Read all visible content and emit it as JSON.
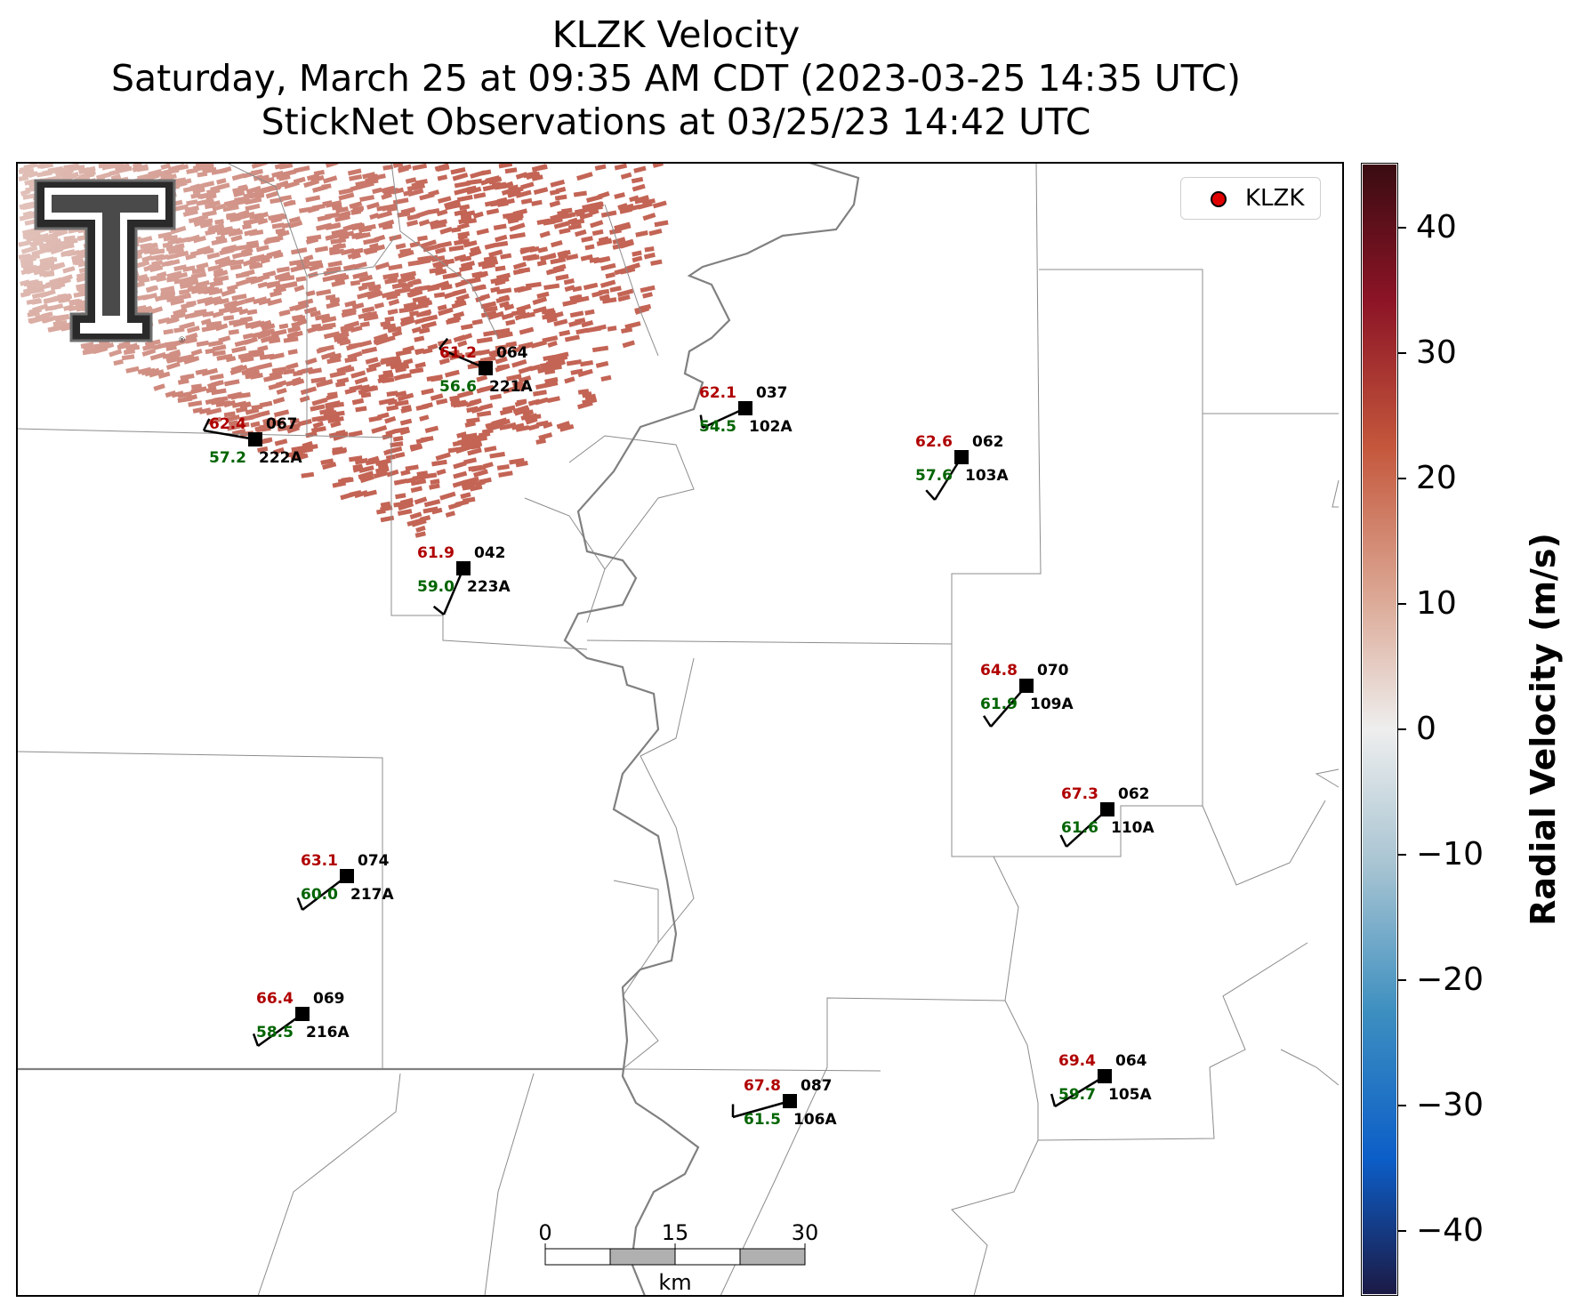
{
  "title": {
    "line1": "KLZK Velocity",
    "line2": "Saturday, March 25 at 09:35 AM CDT (2023-03-25 14:35 UTC)",
    "line3": "StickNet Observations at 03/25/23 14:42 UTC"
  },
  "legend": {
    "label": "KLZK",
    "marker_color": "#e00000"
  },
  "colorbar": {
    "label": "Radial Velocity (m/s)",
    "ticks": [
      "40",
      "30",
      "20",
      "10",
      "0",
      "−10",
      "−20",
      "−30",
      "−40"
    ],
    "range": [
      -45,
      45
    ],
    "colors": [
      "#1c1a45",
      "#0c5ec8",
      "#3d8fc0",
      "#a8c4d2",
      "#eeeeee",
      "#dba692",
      "#c4573c",
      "#8c1426",
      "#3a0c12"
    ]
  },
  "scalebar": {
    "labels": [
      "0",
      "15",
      "30"
    ],
    "unit": "km"
  },
  "stations": [
    {
      "id": "221A",
      "temp": "61.2",
      "dew": "56.6",
      "dir": "064"
    },
    {
      "id": "222A",
      "temp": "62.4",
      "dew": "57.2",
      "dir": "067"
    },
    {
      "id": "102A",
      "temp": "62.1",
      "dew": "54.5",
      "dir": "037"
    },
    {
      "id": "103A",
      "temp": "62.6",
      "dew": "57.6",
      "dir": "062"
    },
    {
      "id": "223A",
      "temp": "61.9",
      "dew": "59.0",
      "dir": "042"
    },
    {
      "id": "109A",
      "temp": "64.8",
      "dew": "61.9",
      "dir": "070"
    },
    {
      "id": "110A",
      "temp": "67.3",
      "dew": "61.6",
      "dir": "062"
    },
    {
      "id": "217A",
      "temp": "63.1",
      "dew": "60.0",
      "dir": "074"
    },
    {
      "id": "216A",
      "temp": "66.4",
      "dew": "58.5",
      "dir": "069"
    },
    {
      "id": "105A",
      "temp": "69.4",
      "dew": "59.7",
      "dir": "064"
    },
    {
      "id": "106A",
      "temp": "67.8",
      "dew": "61.5",
      "dir": "087"
    }
  ],
  "logo": {
    "alt": "Texas Tech Double T logo"
  }
}
